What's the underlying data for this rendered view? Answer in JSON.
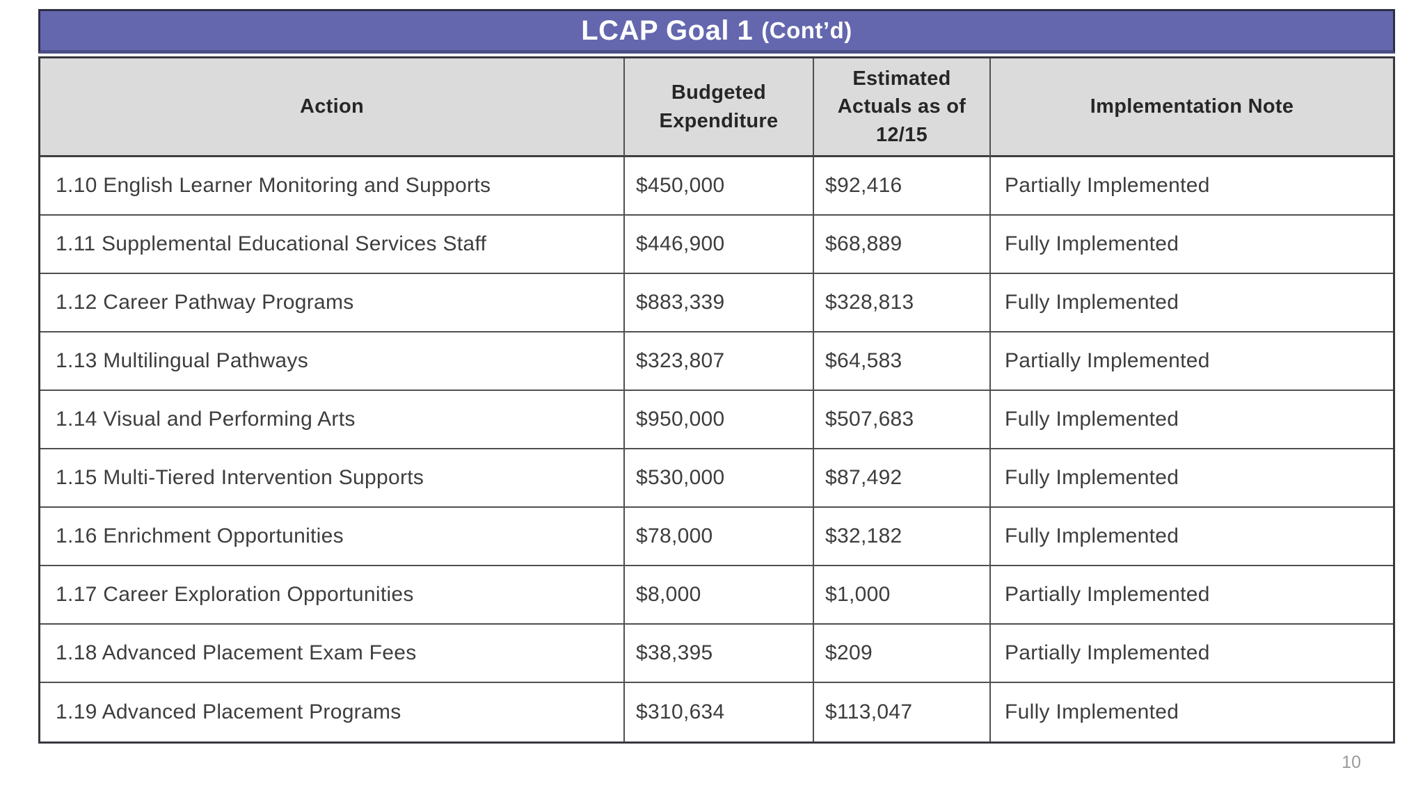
{
  "page": {
    "number": "10"
  },
  "table": {
    "title": "LCAP Goal 1",
    "title_suffix": "(Cont’d)",
    "title_bg": "#6467AE",
    "title_text_color": "#ffffff",
    "header_bg": "#dbdbdb",
    "columns": [
      {
        "key": "action",
        "label": "Action"
      },
      {
        "key": "budgeted",
        "label": "Budgeted\nExpenditure"
      },
      {
        "key": "estimated",
        "label": "Estimated\nActuals  as of\n12/15"
      },
      {
        "key": "note",
        "label": "Implementation Note"
      }
    ],
    "rows": [
      {
        "action": "1.10 English Learner Monitoring and Supports",
        "budgeted": "$450,000",
        "estimated": "$92,416",
        "note": "Partially Implemented"
      },
      {
        "action": "1.11 Supplemental Educational Services Staff",
        "budgeted": "$446,900",
        "estimated": "$68,889",
        "note": "Fully Implemented"
      },
      {
        "action": "1.12 Career Pathway Programs",
        "budgeted": "$883,339",
        "estimated": "$328,813",
        "note": "Fully Implemented"
      },
      {
        "action": "1.13 Multilingual Pathways",
        "budgeted": "$323,807",
        "estimated": "$64,583",
        "note": "Partially Implemented"
      },
      {
        "action": "1.14 Visual and Performing Arts",
        "budgeted": "$950,000",
        "estimated": "$507,683",
        "note": "Fully Implemented"
      },
      {
        "action": "1.15 Multi-Tiered Intervention Supports",
        "budgeted": "$530,000",
        "estimated": "$87,492",
        "note": "Fully Implemented"
      },
      {
        "action": "1.16 Enrichment Opportunities",
        "budgeted": "$78,000",
        "estimated": "$32,182",
        "note": "Fully Implemented"
      },
      {
        "action": "1.17 Career Exploration Opportunities",
        "budgeted": "$8,000",
        "estimated": "$1,000",
        "note": "Partially Implemented"
      },
      {
        "action": "1.18 Advanced Placement Exam Fees",
        "budgeted": "$38,395",
        "estimated": "$209",
        "note": "Partially Implemented"
      },
      {
        "action": "1.19 Advanced Placement Programs",
        "budgeted": "$310,634",
        "estimated": "$113,047",
        "note": "Fully Implemented"
      }
    ]
  }
}
